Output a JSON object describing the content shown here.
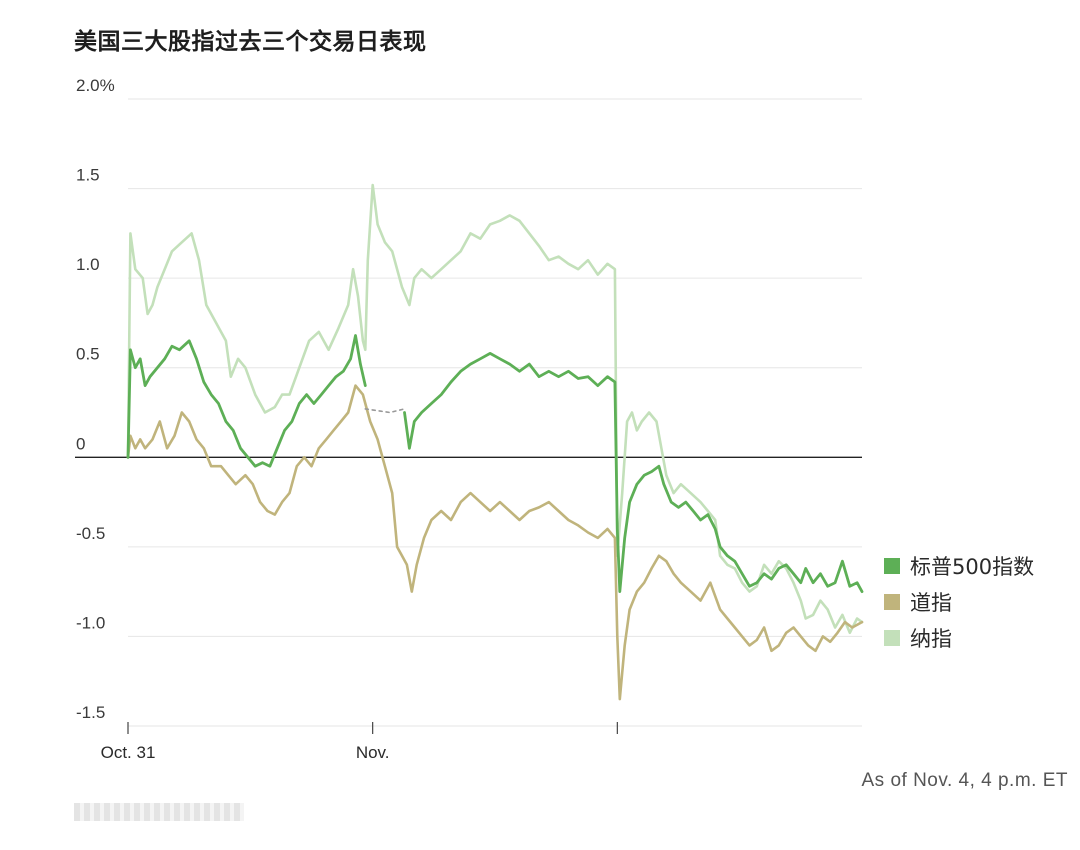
{
  "title": "美国三大股指过去三个交易日表现",
  "note": "As of Nov. 4, 4 p.m. ET",
  "chart_data": {
    "type": "line",
    "title": "美国三大股指过去三个交易日表现",
    "ylim": [
      -1.5,
      2.0
    ],
    "yticks": [
      {
        "value": 2.0,
        "label": "2.0%"
      },
      {
        "value": 1.5,
        "label": "1.5"
      },
      {
        "value": 1.0,
        "label": "1.0"
      },
      {
        "value": 0.5,
        "label": "0.5"
      },
      {
        "value": 0,
        "label": "0"
      },
      {
        "value": -0.5,
        "label": "-0.5"
      },
      {
        "value": -1.0,
        "label": "-1.0"
      },
      {
        "value": -1.5,
        "label": "-1.5"
      }
    ],
    "xlim": [
      0,
      3
    ],
    "xticks": [
      {
        "value": 0,
        "label": "Oct. 31"
      },
      {
        "value": 1,
        "label": "Nov."
      },
      {
        "value": 2,
        "label": ""
      }
    ],
    "grid": true,
    "legend_position": "right",
    "series": [
      {
        "name": "纳指",
        "color": "#c3e0ba",
        "width": 2.6,
        "points": [
          [
            0.0,
            0.0
          ],
          [
            0.01,
            1.25
          ],
          [
            0.03,
            1.05
          ],
          [
            0.06,
            1.0
          ],
          [
            0.08,
            0.8
          ],
          [
            0.1,
            0.85
          ],
          [
            0.12,
            0.95
          ],
          [
            0.15,
            1.05
          ],
          [
            0.18,
            1.15
          ],
          [
            0.22,
            1.2
          ],
          [
            0.26,
            1.25
          ],
          [
            0.29,
            1.1
          ],
          [
            0.32,
            0.85
          ],
          [
            0.36,
            0.75
          ],
          [
            0.4,
            0.65
          ],
          [
            0.42,
            0.45
          ],
          [
            0.45,
            0.55
          ],
          [
            0.48,
            0.5
          ],
          [
            0.52,
            0.35
          ],
          [
            0.56,
            0.25
          ],
          [
            0.6,
            0.28
          ],
          [
            0.63,
            0.35
          ],
          [
            0.66,
            0.35
          ],
          [
            0.7,
            0.5
          ],
          [
            0.74,
            0.65
          ],
          [
            0.78,
            0.7
          ],
          [
            0.82,
            0.6
          ],
          [
            0.86,
            0.72
          ],
          [
            0.9,
            0.85
          ],
          [
            0.92,
            1.05
          ],
          [
            0.94,
            0.9
          ],
          [
            0.96,
            0.65
          ],
          [
            0.97,
            0.6
          ],
          [
            0.98,
            1.1
          ],
          [
            1.0,
            1.52
          ],
          [
            1.02,
            1.3
          ],
          [
            1.05,
            1.2
          ],
          [
            1.08,
            1.15
          ],
          [
            1.12,
            0.95
          ],
          [
            1.15,
            0.85
          ],
          [
            1.17,
            1.0
          ],
          [
            1.2,
            1.05
          ],
          [
            1.24,
            1.0
          ],
          [
            1.28,
            1.05
          ],
          [
            1.32,
            1.1
          ],
          [
            1.36,
            1.15
          ],
          [
            1.4,
            1.25
          ],
          [
            1.44,
            1.22
          ],
          [
            1.48,
            1.3
          ],
          [
            1.52,
            1.32
          ],
          [
            1.56,
            1.35
          ],
          [
            1.6,
            1.32
          ],
          [
            1.64,
            1.25
          ],
          [
            1.68,
            1.18
          ],
          [
            1.72,
            1.1
          ],
          [
            1.76,
            1.12
          ],
          [
            1.8,
            1.08
          ],
          [
            1.84,
            1.05
          ],
          [
            1.88,
            1.1
          ],
          [
            1.92,
            1.02
          ],
          [
            1.96,
            1.08
          ],
          [
            1.99,
            1.05
          ],
          [
            2.0,
            -0.55
          ],
          [
            2.02,
            -0.2
          ],
          [
            2.04,
            0.2
          ],
          [
            2.06,
            0.25
          ],
          [
            2.08,
            0.15
          ],
          [
            2.1,
            0.2
          ],
          [
            2.13,
            0.25
          ],
          [
            2.16,
            0.2
          ],
          [
            2.18,
            0.05
          ],
          [
            2.2,
            -0.1
          ],
          [
            2.23,
            -0.2
          ],
          [
            2.26,
            -0.15
          ],
          [
            2.3,
            -0.2
          ],
          [
            2.34,
            -0.25
          ],
          [
            2.37,
            -0.3
          ],
          [
            2.4,
            -0.35
          ],
          [
            2.42,
            -0.55
          ],
          [
            2.45,
            -0.6
          ],
          [
            2.48,
            -0.62
          ],
          [
            2.51,
            -0.7
          ],
          [
            2.54,
            -0.75
          ],
          [
            2.57,
            -0.72
          ],
          [
            2.6,
            -0.6
          ],
          [
            2.63,
            -0.65
          ],
          [
            2.66,
            -0.58
          ],
          [
            2.69,
            -0.62
          ],
          [
            2.72,
            -0.7
          ],
          [
            2.75,
            -0.8
          ],
          [
            2.77,
            -0.9
          ],
          [
            2.8,
            -0.88
          ],
          [
            2.83,
            -0.8
          ],
          [
            2.86,
            -0.85
          ],
          [
            2.89,
            -0.95
          ],
          [
            2.92,
            -0.88
          ],
          [
            2.95,
            -0.98
          ],
          [
            2.98,
            -0.9
          ],
          [
            3.0,
            -0.92
          ]
        ]
      },
      {
        "name": "道指",
        "color": "#c0b47c",
        "width": 2.6,
        "points": [
          [
            0.0,
            0.0
          ],
          [
            0.01,
            0.12
          ],
          [
            0.03,
            0.05
          ],
          [
            0.05,
            0.1
          ],
          [
            0.07,
            0.05
          ],
          [
            0.1,
            0.1
          ],
          [
            0.13,
            0.2
          ],
          [
            0.16,
            0.05
          ],
          [
            0.19,
            0.12
          ],
          [
            0.22,
            0.25
          ],
          [
            0.25,
            0.2
          ],
          [
            0.28,
            0.1
          ],
          [
            0.31,
            0.05
          ],
          [
            0.34,
            -0.05
          ],
          [
            0.38,
            -0.05
          ],
          [
            0.41,
            -0.1
          ],
          [
            0.44,
            -0.15
          ],
          [
            0.48,
            -0.1
          ],
          [
            0.51,
            -0.15
          ],
          [
            0.54,
            -0.25
          ],
          [
            0.57,
            -0.3
          ],
          [
            0.6,
            -0.32
          ],
          [
            0.63,
            -0.25
          ],
          [
            0.66,
            -0.2
          ],
          [
            0.69,
            -0.05
          ],
          [
            0.72,
            0.0
          ],
          [
            0.75,
            -0.05
          ],
          [
            0.78,
            0.05
          ],
          [
            0.81,
            0.1
          ],
          [
            0.84,
            0.15
          ],
          [
            0.87,
            0.2
          ],
          [
            0.9,
            0.25
          ],
          [
            0.93,
            0.4
          ],
          [
            0.96,
            0.35
          ],
          [
            0.99,
            0.2
          ],
          [
            1.02,
            0.1
          ],
          [
            1.05,
            -0.05
          ],
          [
            1.08,
            -0.2
          ],
          [
            1.1,
            -0.5
          ],
          [
            1.12,
            -0.55
          ],
          [
            1.14,
            -0.6
          ],
          [
            1.16,
            -0.75
          ],
          [
            1.18,
            -0.6
          ],
          [
            1.21,
            -0.45
          ],
          [
            1.24,
            -0.35
          ],
          [
            1.28,
            -0.3
          ],
          [
            1.32,
            -0.35
          ],
          [
            1.36,
            -0.25
          ],
          [
            1.4,
            -0.2
          ],
          [
            1.44,
            -0.25
          ],
          [
            1.48,
            -0.3
          ],
          [
            1.52,
            -0.25
          ],
          [
            1.56,
            -0.3
          ],
          [
            1.6,
            -0.35
          ],
          [
            1.64,
            -0.3
          ],
          [
            1.68,
            -0.28
          ],
          [
            1.72,
            -0.25
          ],
          [
            1.76,
            -0.3
          ],
          [
            1.8,
            -0.35
          ],
          [
            1.84,
            -0.38
          ],
          [
            1.88,
            -0.42
          ],
          [
            1.92,
            -0.45
          ],
          [
            1.96,
            -0.4
          ],
          [
            1.99,
            -0.45
          ],
          [
            2.0,
            -1.0
          ],
          [
            2.01,
            -1.35
          ],
          [
            2.03,
            -1.05
          ],
          [
            2.05,
            -0.85
          ],
          [
            2.08,
            -0.75
          ],
          [
            2.11,
            -0.7
          ],
          [
            2.14,
            -0.62
          ],
          [
            2.17,
            -0.55
          ],
          [
            2.2,
            -0.58
          ],
          [
            2.23,
            -0.65
          ],
          [
            2.26,
            -0.7
          ],
          [
            2.3,
            -0.75
          ],
          [
            2.34,
            -0.8
          ],
          [
            2.38,
            -0.7
          ],
          [
            2.42,
            -0.85
          ],
          [
            2.45,
            -0.9
          ],
          [
            2.48,
            -0.95
          ],
          [
            2.51,
            -1.0
          ],
          [
            2.54,
            -1.05
          ],
          [
            2.57,
            -1.02
          ],
          [
            2.6,
            -0.95
          ],
          [
            2.63,
            -1.08
          ],
          [
            2.66,
            -1.05
          ],
          [
            2.69,
            -0.98
          ],
          [
            2.72,
            -0.95
          ],
          [
            2.75,
            -1.0
          ],
          [
            2.78,
            -1.05
          ],
          [
            2.81,
            -1.08
          ],
          [
            2.84,
            -1.0
          ],
          [
            2.87,
            -1.03
          ],
          [
            2.9,
            -0.98
          ],
          [
            2.93,
            -0.92
          ],
          [
            2.96,
            -0.95
          ],
          [
            3.0,
            -0.92
          ]
        ]
      },
      {
        "name": "标普500指数",
        "color": "#5daf56",
        "width": 2.8,
        "points": [
          [
            0.0,
            0.0
          ],
          [
            0.01,
            0.6
          ],
          [
            0.03,
            0.5
          ],
          [
            0.05,
            0.55
          ],
          [
            0.07,
            0.4
          ],
          [
            0.09,
            0.45
          ],
          [
            0.12,
            0.5
          ],
          [
            0.15,
            0.55
          ],
          [
            0.18,
            0.62
          ],
          [
            0.21,
            0.6
          ],
          [
            0.25,
            0.65
          ],
          [
            0.28,
            0.55
          ],
          [
            0.31,
            0.42
          ],
          [
            0.34,
            0.35
          ],
          [
            0.37,
            0.3
          ],
          [
            0.4,
            0.2
          ],
          [
            0.43,
            0.15
          ],
          [
            0.46,
            0.05
          ],
          [
            0.49,
            0.0
          ],
          [
            0.52,
            -0.05
          ],
          [
            0.55,
            -0.03
          ],
          [
            0.58,
            -0.05
          ],
          [
            0.61,
            0.05
          ],
          [
            0.64,
            0.15
          ],
          [
            0.67,
            0.2
          ],
          [
            0.7,
            0.3
          ],
          [
            0.73,
            0.35
          ],
          [
            0.76,
            0.3
          ],
          [
            0.79,
            0.35
          ],
          [
            0.82,
            0.4
          ],
          [
            0.85,
            0.45
          ],
          [
            0.88,
            0.48
          ],
          [
            0.91,
            0.55
          ],
          [
            0.93,
            0.68
          ],
          [
            0.95,
            0.52
          ],
          [
            0.97,
            0.4
          ]
        ]
      },
      {
        "name": "标普500指数",
        "color": "#5daf56",
        "width": 2.8,
        "points": [
          [
            1.13,
            0.25
          ],
          [
            1.15,
            0.05
          ],
          [
            1.17,
            0.2
          ],
          [
            1.2,
            0.25
          ],
          [
            1.24,
            0.3
          ],
          [
            1.28,
            0.35
          ],
          [
            1.32,
            0.42
          ],
          [
            1.36,
            0.48
          ],
          [
            1.4,
            0.52
          ],
          [
            1.44,
            0.55
          ],
          [
            1.48,
            0.58
          ],
          [
            1.52,
            0.55
          ],
          [
            1.56,
            0.52
          ],
          [
            1.6,
            0.48
          ],
          [
            1.64,
            0.52
          ],
          [
            1.68,
            0.45
          ],
          [
            1.72,
            0.48
          ],
          [
            1.76,
            0.45
          ],
          [
            1.8,
            0.48
          ],
          [
            1.84,
            0.44
          ],
          [
            1.88,
            0.45
          ],
          [
            1.92,
            0.4
          ],
          [
            1.96,
            0.45
          ],
          [
            1.99,
            0.42
          ],
          [
            2.0,
            -0.4
          ],
          [
            2.01,
            -0.75
          ],
          [
            2.03,
            -0.45
          ],
          [
            2.05,
            -0.25
          ],
          [
            2.08,
            -0.15
          ],
          [
            2.11,
            -0.1
          ],
          [
            2.14,
            -0.08
          ],
          [
            2.17,
            -0.05
          ],
          [
            2.19,
            -0.15
          ],
          [
            2.22,
            -0.25
          ],
          [
            2.25,
            -0.28
          ],
          [
            2.28,
            -0.25
          ],
          [
            2.31,
            -0.3
          ],
          [
            2.34,
            -0.35
          ],
          [
            2.37,
            -0.32
          ],
          [
            2.4,
            -0.4
          ],
          [
            2.42,
            -0.5
          ],
          [
            2.45,
            -0.55
          ],
          [
            2.48,
            -0.58
          ],
          [
            2.51,
            -0.65
          ],
          [
            2.54,
            -0.72
          ],
          [
            2.57,
            -0.7
          ],
          [
            2.6,
            -0.65
          ],
          [
            2.63,
            -0.68
          ],
          [
            2.66,
            -0.62
          ],
          [
            2.69,
            -0.6
          ],
          [
            2.72,
            -0.65
          ],
          [
            2.75,
            -0.7
          ],
          [
            2.77,
            -0.62
          ],
          [
            2.8,
            -0.7
          ],
          [
            2.83,
            -0.65
          ],
          [
            2.86,
            -0.72
          ],
          [
            2.89,
            -0.7
          ],
          [
            2.92,
            -0.58
          ],
          [
            2.95,
            -0.72
          ],
          [
            2.98,
            -0.7
          ],
          [
            3.0,
            -0.75
          ]
        ]
      },
      {
        "name": "标普500指数",
        "color": "#999999",
        "width": 1.6,
        "dashed": true,
        "points": [
          [
            0.97,
            0.27
          ],
          [
            1.07,
            0.25
          ],
          [
            1.13,
            0.27
          ]
        ]
      }
    ],
    "legend": [
      {
        "label": "标普500指数",
        "color": "#5daf56"
      },
      {
        "label": "道指",
        "color": "#c0b47c"
      },
      {
        "label": "纳指",
        "color": "#c3e0ba"
      }
    ]
  }
}
